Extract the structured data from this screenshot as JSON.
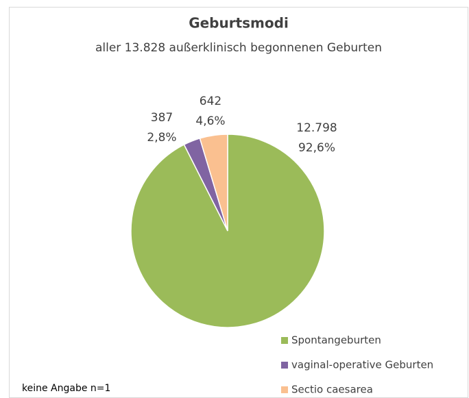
{
  "chart_data": {
    "type": "pie",
    "title": "Geburtsmodi",
    "subtitle": "aller 13.828 außerklinisch begonnenen Geburten",
    "categories": [
      "Spontangeburten",
      "vaginal-operative Geburten",
      "Sectio caesarea"
    ],
    "values": [
      12798,
      387,
      642
    ],
    "value_labels": [
      "12.798",
      "387",
      "642"
    ],
    "percentages": [
      92.6,
      2.8,
      4.6
    ],
    "percentage_labels": [
      "92,6%",
      "2,8%",
      "4,6%"
    ],
    "colors": [
      "#9bbb59",
      "#8064a2",
      "#fac090"
    ],
    "note": "keine Angabe n=1",
    "legend": "bottom-right"
  }
}
